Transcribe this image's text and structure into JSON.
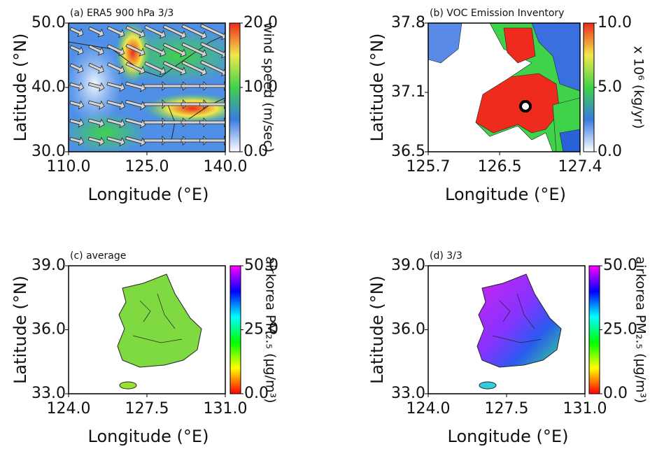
{
  "chart_data": [
    {
      "type": "map",
      "title": "(a) ERA5 900 hPa 3/3",
      "xlabel": "Longitude (°E)",
      "ylabel": "Latitude (°N)",
      "xlim": [
        110,
        140
      ],
      "ylim": [
        30,
        50
      ],
      "xticks": [
        {
          "value": 110,
          "label": "110.0"
        },
        {
          "value": 125,
          "label": "125.0"
        },
        {
          "value": 140,
          "label": "140.0"
        }
      ],
      "yticks": [
        {
          "value": 30,
          "label": "30.0"
        },
        {
          "value": 40,
          "label": "40.0"
        },
        {
          "value": 50,
          "label": "50.0"
        }
      ],
      "colorbar": {
        "label": "wind speed (m/sec)",
        "lim": [
          0,
          20
        ],
        "colormap": [
          "#ffffff",
          "#3a7be0",
          "#3fd24a",
          "#f2e84a",
          "#ee2b1c"
        ],
        "ticks": [
          {
            "value": 0,
            "label": "0.0"
          },
          {
            "value": 10,
            "label": "10.0"
          },
          {
            "value": 20,
            "label": "20.0"
          }
        ]
      }
    },
    {
      "type": "map",
      "title": "(b) VOC Emission Inventory",
      "xlabel": "Longitude (°E)",
      "ylabel": "Latitude (°N)",
      "xlim": [
        125.7,
        127.4
      ],
      "ylim": [
        36.5,
        37.8
      ],
      "xticks": [
        125.7,
        126.5,
        127.4
      ],
      "yticks": [
        36.5,
        37.1,
        37.8
      ],
      "colorbar": {
        "label": "x 10⁶ (kg/yr)",
        "lim": [
          0,
          10
        ],
        "colormap": [
          "#ffffff",
          "#3a7be0",
          "#3fd24a",
          "#f2e84a",
          "#ee2b1c"
        ],
        "ticks": [
          {
            "value": 0,
            "label": "0.0"
          },
          {
            "value": 5,
            "label": "5.0"
          },
          {
            "value": 10,
            "label": "10.0"
          }
        ]
      }
    },
    {
      "type": "map",
      "title": "(c) average",
      "xlabel": "Longitude (°E)",
      "ylabel": "Latitude (°N)",
      "xlim": [
        124,
        131
      ],
      "ylim": [
        33,
        39
      ],
      "xticks": [
        {
          "value": 124,
          "label": "124.0"
        },
        {
          "value": 127.5,
          "label": "127.5"
        },
        {
          "value": 131,
          "label": "131.0"
        }
      ],
      "yticks": [
        {
          "value": 33,
          "label": "33.0"
        },
        {
          "value": 36,
          "label": "36.0"
        },
        {
          "value": 39,
          "label": "39.0"
        }
      ],
      "colorbar": {
        "label": "airkorea PM₂.₅ (μg/m³)",
        "lim": [
          0,
          50
        ],
        "colormap": [
          "#ff0000",
          "#ffff00",
          "#00ff00",
          "#00ffff",
          "#0000ff",
          "#ff00ff"
        ],
        "ticks": [
          {
            "value": 0,
            "label": "0.0"
          },
          {
            "value": 25,
            "label": "25.0"
          },
          {
            "value": 50,
            "label": "50.0"
          }
        ]
      }
    },
    {
      "type": "map",
      "title": "(d) 3/3",
      "xlabel": "Longitude (°E)",
      "ylabel": "Latitude (°N)",
      "xlim": [
        124,
        131
      ],
      "ylim": [
        33,
        39
      ],
      "xticks": [
        {
          "value": 124,
          "label": "124.0"
        },
        {
          "value": 127.5,
          "label": "127.5"
        },
        {
          "value": 131,
          "label": "131.0"
        }
      ],
      "yticks": [
        {
          "value": 33,
          "label": "33.0"
        },
        {
          "value": 36,
          "label": "36.0"
        },
        {
          "value": 39,
          "label": "39.0"
        }
      ],
      "colorbar": {
        "label": "airkorea PM₂.₅ (μg/m³)",
        "lim": [
          0,
          50
        ],
        "colormap": [
          "#ff0000",
          "#ffff00",
          "#00ff00",
          "#00ffff",
          "#0000ff",
          "#ff00ff"
        ],
        "ticks": [
          {
            "value": 0,
            "label": "0.0"
          },
          {
            "value": 25,
            "label": "25.0"
          },
          {
            "value": 50,
            "label": "50.0"
          }
        ]
      }
    }
  ]
}
